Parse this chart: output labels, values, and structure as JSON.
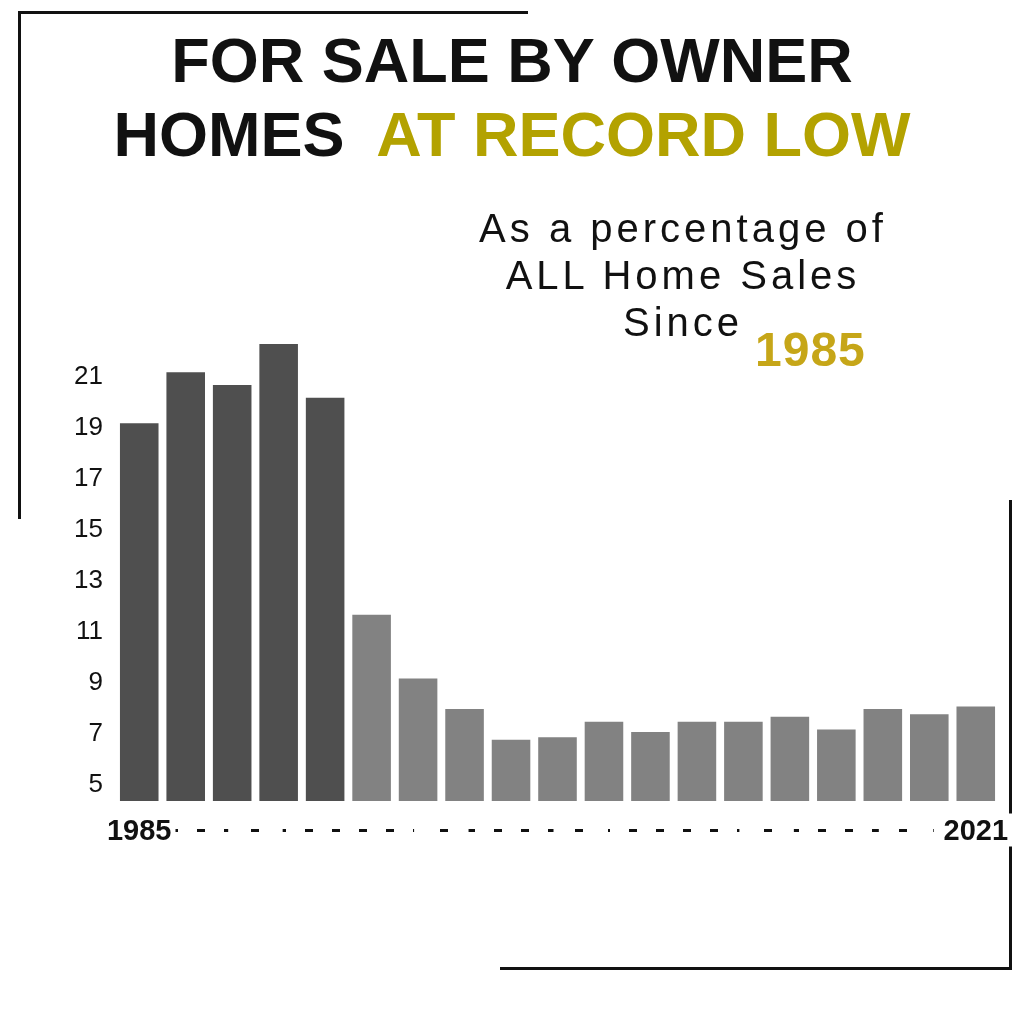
{
  "chart_data": {
    "type": "bar",
    "title": "FOR SALE BY OWNER HOMES AT RECORD LOW",
    "subtitle": "As a percentage of ALL Home Sales Since 1985",
    "categories": [
      "1985",
      null,
      null,
      null,
      null,
      null,
      null,
      null,
      null,
      null,
      null,
      null,
      null,
      null,
      null,
      null,
      null,
      null,
      "2021"
    ],
    "values": [
      19.1,
      21.1,
      20.6,
      22.2,
      20.1,
      11.6,
      9.1,
      7.9,
      6.7,
      6.8,
      7.4,
      7.0,
      7.4,
      7.4,
      7.6,
      7.1,
      7.9,
      7.7,
      8.0
    ],
    "colors": [
      "#4f4f4f",
      "#4f4f4f",
      "#4f4f4f",
      "#4f4f4f",
      "#4f4f4f",
      "#828282",
      "#828282",
      "#828282",
      "#828282",
      "#828282",
      "#828282",
      "#828282",
      "#828282",
      "#828282",
      "#828282",
      "#828282",
      "#828282",
      "#828282",
      "#828282"
    ],
    "ylim": [
      4.3,
      22.4
    ],
    "yticks": [
      5,
      7,
      9,
      11,
      13,
      15,
      17,
      19,
      21
    ],
    "grid": false
  }
}
